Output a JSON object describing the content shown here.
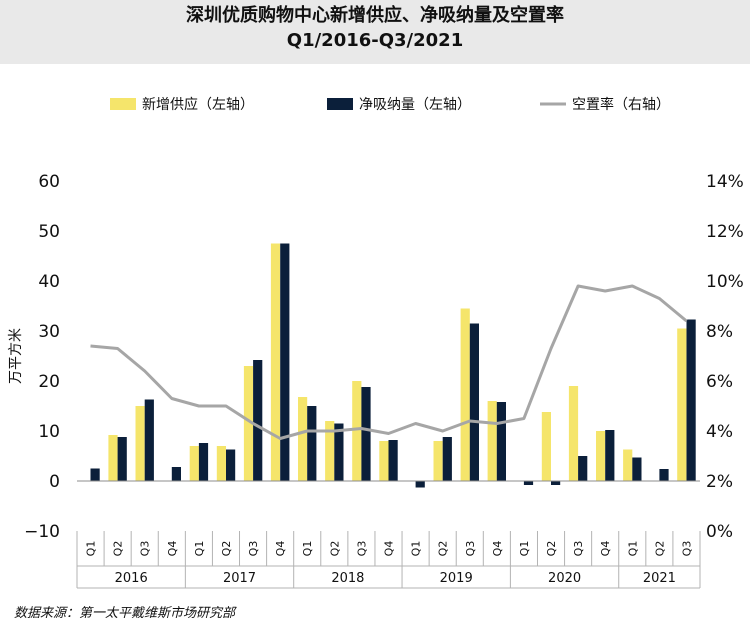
{
  "title_line1": "深圳优质购物中心新增供应、净吸纳量及空置率",
  "title_line2": "Q1/2016-Q3/2021",
  "source": "数据来源：第一太平戴维斯市场研究部",
  "chart_data": {
    "type": "bar",
    "left_axis": {
      "label": "万平方米",
      "ylim": [
        -10,
        60
      ],
      "ticks": [
        -10,
        0,
        10,
        20,
        30,
        40,
        50,
        60
      ]
    },
    "right_axis": {
      "ylim": [
        0,
        14
      ],
      "ticks": [
        "0%",
        "2%",
        "4%",
        "6%",
        "8%",
        "10%",
        "12%",
        "14%"
      ]
    },
    "legend": {
      "placement": "top"
    },
    "years": [
      "2016",
      "2017",
      "2018",
      "2019",
      "2020",
      "2021"
    ],
    "categories": [
      "Q1",
      "Q2",
      "Q3",
      "Q4",
      "Q1",
      "Q2",
      "Q3",
      "Q4",
      "Q1",
      "Q2",
      "Q3",
      "Q4",
      "Q1",
      "Q2",
      "Q3",
      "Q4",
      "Q1",
      "Q2",
      "Q3",
      "Q4",
      "Q1",
      "Q2",
      "Q3"
    ],
    "series": [
      {
        "name": "新增供应（左轴）",
        "type": "bar",
        "axis": "left",
        "color": "#f5e56b",
        "values": [
          0,
          9.2,
          15,
          0,
          7,
          7,
          23,
          47.5,
          16.8,
          12,
          20,
          8,
          0,
          8,
          34.5,
          16,
          0,
          13.8,
          19,
          10,
          6.3,
          0,
          30.5
        ]
      },
      {
        "name": "净吸纳量（左轴）",
        "type": "bar",
        "axis": "left",
        "color": "#0b1f3a",
        "values": [
          2.5,
          8.8,
          16.3,
          2.8,
          7.6,
          6.3,
          24.2,
          47.5,
          15,
          11.5,
          18.8,
          8.2,
          -1.3,
          8.8,
          31.5,
          15.8,
          -0.8,
          -0.8,
          5,
          10.2,
          4.7,
          2.4,
          32.3
        ]
      },
      {
        "name": "空置率（右轴）",
        "type": "line",
        "axis": "right",
        "color": "#a6a6a6",
        "values": [
          7.4,
          7.3,
          6.4,
          5.3,
          5.0,
          5.0,
          4.3,
          3.7,
          4.0,
          4.0,
          4.1,
          3.9,
          4.3,
          4.0,
          4.4,
          4.3,
          4.5,
          7.3,
          9.8,
          9.6,
          9.8,
          9.3,
          8.4
        ]
      }
    ]
  }
}
